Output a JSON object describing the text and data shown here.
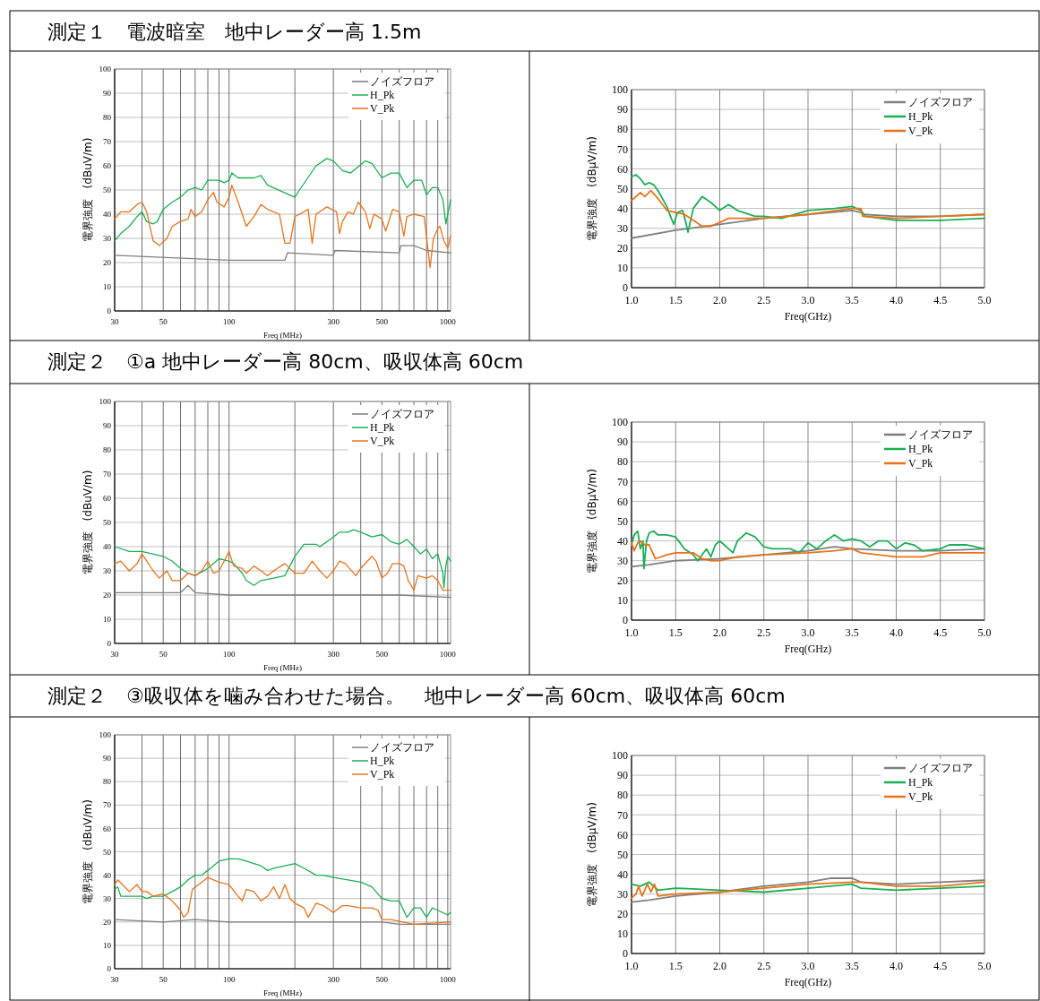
{
  "chart_data": [
    {
      "type": "line",
      "title": "測定１　電波暗室　地中レーダー高 1.5m",
      "xlabel": "Freq (MHz)",
      "ylabel": "電界強度　(dBuV/m)",
      "log": "x",
      "grid": true,
      "legend": "top right",
      "xlim": [
        30,
        1030
      ],
      "ylim": [
        0,
        100
      ],
      "xticks": [
        30,
        {
          "value": 40,
          "label": null
        },
        50,
        {
          "value": 60,
          "label": null
        },
        {
          "value": 70,
          "label": null
        },
        {
          "value": 80,
          "label": null
        },
        {
          "value": 90,
          "label": null
        },
        100,
        {
          "value": 200,
          "label": null
        },
        300,
        {
          "value": 400,
          "label": null
        },
        500,
        {
          "value": 600,
          "label": null
        },
        {
          "value": 700,
          "label": null
        },
        {
          "value": 800,
          "label": null
        },
        {
          "value": 900,
          "label": null
        },
        1000
      ],
      "yticks": [
        0,
        10,
        20,
        30,
        40,
        50,
        60,
        70,
        80,
        90,
        100
      ],
      "series": [
        {
          "name": "ノイズフロア",
          "color": "#7f7f7f",
          "x": [
            30,
            100,
            180,
            185,
            300,
            305,
            600,
            610,
            700,
            800,
            1030
          ],
          "values": [
            23,
            21,
            21,
            24,
            23,
            25,
            24,
            27,
            27,
            25,
            24
          ]
        },
        {
          "name": "H_Pk",
          "color": "#1aaf54",
          "x": [
            30,
            32,
            35,
            38,
            40,
            42,
            45,
            47,
            50,
            55,
            60,
            65,
            70,
            75,
            80,
            90,
            95,
            100,
            103,
            110,
            130,
            140,
            150,
            200,
            210,
            250,
            280,
            300,
            330,
            360,
            420,
            450,
            500,
            550,
            600,
            650,
            700,
            760,
            800,
            850,
            900,
            950,
            980,
            1030
          ],
          "values": [
            29,
            32,
            35,
            39,
            41,
            37,
            36,
            37,
            42,
            45,
            47,
            50,
            51,
            50,
            54,
            54,
            53,
            54,
            57,
            55,
            55,
            56,
            52,
            47,
            50,
            60,
            63,
            62,
            58,
            57,
            62,
            61,
            55,
            57,
            57,
            51,
            54,
            54,
            48,
            51,
            51,
            46,
            36,
            46
          ]
        },
        {
          "name": "V_Pk",
          "color": "#e8731a",
          "x": [
            30,
            32,
            35,
            38,
            40,
            42,
            45,
            48,
            52,
            55,
            60,
            65,
            67,
            70,
            75,
            80,
            85,
            88,
            95,
            100,
            103,
            110,
            120,
            130,
            140,
            150,
            170,
            180,
            190,
            200,
            230,
            240,
            250,
            280,
            310,
            320,
            330,
            350,
            370,
            390,
            420,
            440,
            460,
            500,
            520,
            560,
            600,
            630,
            650,
            700,
            780,
            830,
            860,
            900,
            920,
            960,
            1000,
            1030
          ],
          "values": [
            38,
            41,
            41,
            44,
            45,
            41,
            29,
            27,
            30,
            35,
            37,
            38,
            42,
            39,
            41,
            46,
            49,
            45,
            43,
            47,
            52,
            45,
            35,
            39,
            44,
            42,
            40,
            28,
            28,
            39,
            42,
            28,
            40,
            43,
            41,
            32,
            37,
            41,
            40,
            45,
            41,
            34,
            40,
            38,
            33,
            42,
            41,
            31,
            39,
            40,
            39,
            18,
            30,
            34,
            35,
            29,
            26,
            31
          ]
        }
      ]
    },
    {
      "type": "line",
      "xlabel": "Freq(GHz)",
      "ylabel": "電界強度　(dBμV/m)",
      "grid": true,
      "legend": "top right",
      "xlim": [
        1,
        5
      ],
      "ylim": [
        0,
        100
      ],
      "xticks": [
        {
          "value": 1,
          "label": "1.0"
        },
        1.5,
        {
          "value": 2,
          "label": "2.0"
        },
        2.5,
        {
          "value": 3,
          "label": "3.0"
        },
        3.5,
        {
          "value": 4,
          "label": "4.0"
        },
        4.5,
        {
          "value": 5,
          "label": "5.0"
        }
      ],
      "yticks": [
        0,
        10,
        20,
        30,
        40,
        50,
        60,
        70,
        80,
        90,
        100
      ],
      "series": [
        {
          "name": "ノイズフロア",
          "color": "#7f7f7f",
          "x": [
            1,
            1.5,
            2,
            2.5,
            3,
            3.5,
            3.6,
            3.62,
            4,
            4.5,
            5
          ],
          "values": [
            25,
            29,
            32,
            35,
            37,
            39,
            38,
            37,
            36,
            36,
            37
          ]
        },
        {
          "name": "H_Pk",
          "color": "#1aaf54",
          "x": [
            1,
            1.05,
            1.1,
            1.15,
            1.2,
            1.25,
            1.3,
            1.4,
            1.45,
            1.48,
            1.52,
            1.58,
            1.62,
            1.64,
            1.7,
            1.8,
            1.9,
            2,
            2.1,
            2.2,
            2.4,
            2.5,
            2.7,
            3,
            3.3,
            3.5,
            3.6,
            3.65,
            4,
            4.5,
            5
          ],
          "values": [
            56,
            57,
            55,
            52,
            53,
            52,
            49,
            41,
            35,
            32,
            38,
            39,
            32,
            28,
            40,
            46,
            43,
            39,
            42,
            39,
            36,
            36,
            35,
            39,
            40,
            41,
            39,
            36,
            34,
            34,
            35
          ]
        },
        {
          "name": "V_Pk",
          "color": "#e8731a",
          "x": [
            1,
            1.05,
            1.1,
            1.15,
            1.22,
            1.3,
            1.4,
            1.5,
            1.6,
            1.7,
            1.8,
            1.9,
            2,
            2.1,
            2.5,
            3,
            3.5,
            3.6,
            3.62,
            4,
            4.5,
            5
          ],
          "values": [
            44,
            46,
            48,
            46,
            49,
            45,
            39,
            38,
            37,
            34,
            31,
            31,
            33,
            35,
            35,
            37,
            40,
            40,
            36,
            35,
            36,
            37
          ]
        }
      ]
    },
    {
      "type": "line",
      "title": "測定２　①a 地中レーダー高 80cm、吸収体高 60cm",
      "xlabel": "Freq (MHz)",
      "ylabel": "電界強度　(dBuV/m)",
      "log": "x",
      "grid": true,
      "legend": "top right",
      "xlim": [
        30,
        1030
      ],
      "ylim": [
        0,
        100
      ],
      "xticks": [
        30,
        {
          "value": 40,
          "label": null
        },
        50,
        {
          "value": 60,
          "label": null
        },
        {
          "value": 70,
          "label": null
        },
        {
          "value": 80,
          "label": null
        },
        {
          "value": 90,
          "label": null
        },
        100,
        {
          "value": 200,
          "label": null
        },
        300,
        {
          "value": 400,
          "label": null
        },
        500,
        {
          "value": 600,
          "label": null
        },
        {
          "value": 700,
          "label": null
        },
        {
          "value": 800,
          "label": null
        },
        {
          "value": 900,
          "label": null
        },
        1000
      ],
      "yticks": [
        0,
        10,
        20,
        30,
        40,
        50,
        60,
        70,
        80,
        90,
        100
      ],
      "series": [
        {
          "name": "ノイズフロア",
          "color": "#7f7f7f",
          "x": [
            30,
            40,
            60,
            65,
            70,
            100,
            300,
            600,
            1030
          ],
          "values": [
            21,
            21,
            21,
            24,
            21,
            20,
            20,
            20,
            19
          ]
        },
        {
          "name": "H_Pk",
          "color": "#1aaf54",
          "x": [
            30,
            35,
            40,
            50,
            55,
            60,
            65,
            70,
            80,
            90,
            100,
            105,
            115,
            120,
            130,
            140,
            160,
            180,
            200,
            220,
            250,
            260,
            280,
            300,
            320,
            350,
            370,
            400,
            450,
            500,
            550,
            600,
            650,
            700,
            750,
            800,
            850,
            900,
            950,
            960,
            980,
            1000,
            1030
          ],
          "values": [
            40,
            38,
            38,
            36,
            34,
            31,
            29,
            28,
            31,
            35,
            34,
            33,
            29,
            26,
            24,
            26,
            27,
            28,
            36,
            41,
            41,
            40,
            42,
            44,
            46,
            46,
            47,
            46,
            44,
            45,
            42,
            41,
            43,
            40,
            37,
            39,
            35,
            37,
            29,
            23,
            32,
            36,
            34
          ]
        },
        {
          "name": "V_Pk",
          "color": "#e8731a",
          "x": [
            30,
            32,
            35,
            38,
            40,
            45,
            48,
            52,
            55,
            60,
            65,
            70,
            75,
            80,
            85,
            90,
            95,
            100,
            105,
            115,
            120,
            130,
            140,
            150,
            160,
            180,
            200,
            220,
            240,
            260,
            280,
            300,
            320,
            340,
            380,
            400,
            450,
            470,
            500,
            530,
            560,
            600,
            630,
            660,
            700,
            730,
            800,
            850,
            900,
            950,
            1000,
            1030
          ],
          "values": [
            33,
            34,
            30,
            33,
            37,
            30,
            27,
            30,
            26,
            26,
            29,
            28,
            30,
            34,
            29,
            30,
            34,
            38,
            32,
            31,
            29,
            32,
            30,
            28,
            30,
            33,
            29,
            29,
            34,
            30,
            27,
            30,
            34,
            33,
            28,
            31,
            36,
            34,
            27,
            29,
            33,
            33,
            32,
            26,
            22,
            28,
            27,
            28,
            26,
            22,
            22,
            22
          ]
        }
      ]
    },
    {
      "type": "line",
      "xlabel": "Freq(GHz)",
      "ylabel": "電界強度　(dBμV/m)",
      "grid": true,
      "legend": "top right",
      "xlim": [
        1,
        5
      ],
      "ylim": [
        0,
        100
      ],
      "xticks": [
        {
          "value": 1,
          "label": "1.0"
        },
        1.5,
        {
          "value": 2,
          "label": "2.0"
        },
        2.5,
        {
          "value": 3,
          "label": "3.0"
        },
        3.5,
        {
          "value": 4,
          "label": "4.0"
        },
        4.5,
        {
          "value": 5,
          "label": "5.0"
        }
      ],
      "yticks": [
        0,
        10,
        20,
        30,
        40,
        50,
        60,
        70,
        80,
        90,
        100
      ],
      "series": [
        {
          "name": "ノイズフロア",
          "color": "#7f7f7f",
          "x": [
            1,
            1.2,
            1.5,
            2,
            2.5,
            3,
            3.3,
            3.5,
            4,
            4.5,
            5
          ],
          "values": [
            27,
            28,
            30,
            31,
            33,
            35,
            37,
            36,
            35,
            35,
            36
          ]
        },
        {
          "name": "H_Pk",
          "color": "#1aaf54",
          "x": [
            1,
            1.03,
            1.07,
            1.1,
            1.13,
            1.14,
            1.17,
            1.2,
            1.25,
            1.3,
            1.4,
            1.5,
            1.6,
            1.7,
            1.75,
            1.8,
            1.85,
            1.9,
            1.95,
            2,
            2.05,
            2.15,
            2.2,
            2.3,
            2.4,
            2.5,
            2.6,
            2.8,
            2.9,
            3,
            3.1,
            3.2,
            3.3,
            3.4,
            3.5,
            3.6,
            3.7,
            3.8,
            3.9,
            4,
            4.1,
            4.2,
            4.3,
            4.5,
            4.6,
            4.8,
            5
          ],
          "values": [
            38,
            43,
            45,
            36,
            40,
            26,
            40,
            44,
            45,
            43,
            43,
            42,
            36,
            33,
            30,
            33,
            36,
            32,
            38,
            40,
            38,
            34,
            40,
            44,
            42,
            37,
            36,
            36,
            34,
            39,
            36,
            40,
            43,
            40,
            41,
            40,
            37,
            40,
            40,
            36,
            39,
            38,
            35,
            36,
            38,
            38,
            36
          ]
        },
        {
          "name": "V_Pk",
          "color": "#e8731a",
          "x": [
            1,
            1.03,
            1.07,
            1.1,
            1.15,
            1.2,
            1.27,
            1.4,
            1.5,
            1.6,
            1.7,
            1.8,
            1.9,
            2,
            2.2,
            2.5,
            3,
            3.3,
            3.5,
            3.6,
            4,
            4.3,
            4.5,
            5
          ],
          "values": [
            39,
            35,
            39,
            40,
            38,
            38,
            31,
            33,
            34,
            34,
            34,
            31,
            30,
            30,
            32,
            33,
            34,
            35,
            36,
            34,
            32,
            32,
            34,
            34
          ]
        }
      ]
    },
    {
      "type": "line",
      "title": "測定２　③吸収体を噛み合わせた場合。　地中レーダー高 60cm、吸収体高 60cm",
      "xlabel": "Freq (MHz)",
      "ylabel": "電界強度　(dBuV/m)",
      "log": "x",
      "grid": true,
      "legend": "top right",
      "xlim": [
        30,
        1030
      ],
      "ylim": [
        0,
        100
      ],
      "xticks": [
        30,
        {
          "value": 40,
          "label": null
        },
        50,
        {
          "value": 60,
          "label": null
        },
        {
          "value": 70,
          "label": null
        },
        {
          "value": 80,
          "label": null
        },
        {
          "value": 90,
          "label": null
        },
        100,
        {
          "value": 200,
          "label": null
        },
        300,
        {
          "value": 400,
          "label": null
        },
        500,
        {
          "value": 600,
          "label": null
        },
        {
          "value": 700,
          "label": null
        },
        {
          "value": 800,
          "label": null
        },
        {
          "value": 900,
          "label": null
        },
        1000
      ],
      "yticks": [
        0,
        10,
        20,
        30,
        40,
        50,
        60,
        70,
        80,
        90,
        100
      ],
      "series": [
        {
          "name": "ノイズフロア",
          "color": "#7f7f7f",
          "x": [
            30,
            50,
            70,
            100,
            300,
            500,
            600,
            1030
          ],
          "values": [
            21,
            20,
            21,
            20,
            20,
            20,
            19,
            19
          ]
        },
        {
          "name": "H_Pk",
          "color": "#1aaf54",
          "x": [
            30,
            31,
            32,
            35,
            40,
            42,
            45,
            50,
            55,
            60,
            65,
            70,
            75,
            80,
            90,
            100,
            110,
            120,
            130,
            140,
            150,
            160,
            180,
            200,
            220,
            250,
            270,
            300,
            350,
            400,
            450,
            500,
            550,
            600,
            650,
            700,
            750,
            800,
            850,
            900,
            1000,
            1030
          ],
          "values": [
            34,
            35,
            31,
            31,
            31,
            30,
            31,
            31,
            33,
            35,
            38,
            40,
            40,
            42,
            46,
            47,
            47,
            46,
            45,
            44,
            42,
            43,
            44,
            45,
            43,
            40,
            40,
            39,
            38,
            37,
            35,
            30,
            29,
            29,
            22,
            26,
            26,
            22,
            26,
            25,
            23,
            24
          ]
        },
        {
          "name": "V_Pk",
          "color": "#e8731a",
          "x": [
            30,
            31,
            35,
            38,
            40,
            42,
            45,
            50,
            55,
            60,
            62,
            65,
            68,
            75,
            80,
            85,
            90,
            100,
            110,
            115,
            120,
            130,
            140,
            150,
            160,
            170,
            180,
            190,
            200,
            220,
            230,
            240,
            250,
            270,
            300,
            330,
            350,
            400,
            450,
            480,
            500,
            550,
            700,
            1030
          ],
          "values": [
            36,
            38,
            33,
            36,
            33,
            33,
            31,
            32,
            29,
            25,
            22,
            24,
            34,
            37,
            39,
            38,
            37,
            36,
            31,
            29,
            34,
            33,
            29,
            31,
            35,
            30,
            36,
            30,
            28,
            26,
            22,
            25,
            28,
            27,
            24,
            27,
            27,
            26,
            26,
            25,
            21,
            21,
            19,
            20
          ]
        }
      ]
    },
    {
      "type": "line",
      "xlabel": "Freq(GHz)",
      "ylabel": "電界強度　(dBμV/m)",
      "grid": true,
      "legend": "top right",
      "xlim": [
        1,
        5
      ],
      "ylim": [
        0,
        100
      ],
      "xticks": [
        {
          "value": 1,
          "label": "1.0"
        },
        1.5,
        {
          "value": 2,
          "label": "2.0"
        },
        2.5,
        {
          "value": 3,
          "label": "3.0"
        },
        3.5,
        {
          "value": 4,
          "label": "4.0"
        },
        4.5,
        {
          "value": 5,
          "label": "5.0"
        }
      ],
      "yticks": [
        0,
        10,
        20,
        30,
        40,
        50,
        60,
        70,
        80,
        90,
        100
      ],
      "series": [
        {
          "name": "ノイズフロア",
          "color": "#7f7f7f",
          "x": [
            1,
            1.2,
            1.5,
            2,
            2.5,
            3,
            3.25,
            3.5,
            3.6,
            4,
            4.5,
            5
          ],
          "values": [
            26,
            27,
            29,
            31,
            34,
            36,
            38,
            38,
            36,
            35,
            36,
            37
          ]
        },
        {
          "name": "H_Pk",
          "color": "#1aaf54",
          "x": [
            1,
            1.1,
            1.2,
            1.3,
            1.5,
            2,
            2.5,
            3,
            3.5,
            3.6,
            4,
            4.5,
            5
          ],
          "values": [
            35,
            34,
            36,
            32,
            33,
            32,
            31,
            33,
            35,
            33,
            32,
            33,
            34
          ]
        },
        {
          "name": "V_Pk",
          "color": "#e8731a",
          "x": [
            1,
            1.05,
            1.08,
            1.12,
            1.18,
            1.22,
            1.26,
            1.3,
            1.5,
            2,
            2.5,
            3,
            3.5,
            3.6,
            4,
            4.5,
            5
          ],
          "values": [
            28,
            30,
            34,
            29,
            35,
            31,
            35,
            29,
            30,
            31,
            33,
            35,
            36,
            36,
            34,
            34,
            36
          ]
        }
      ]
    }
  ]
}
